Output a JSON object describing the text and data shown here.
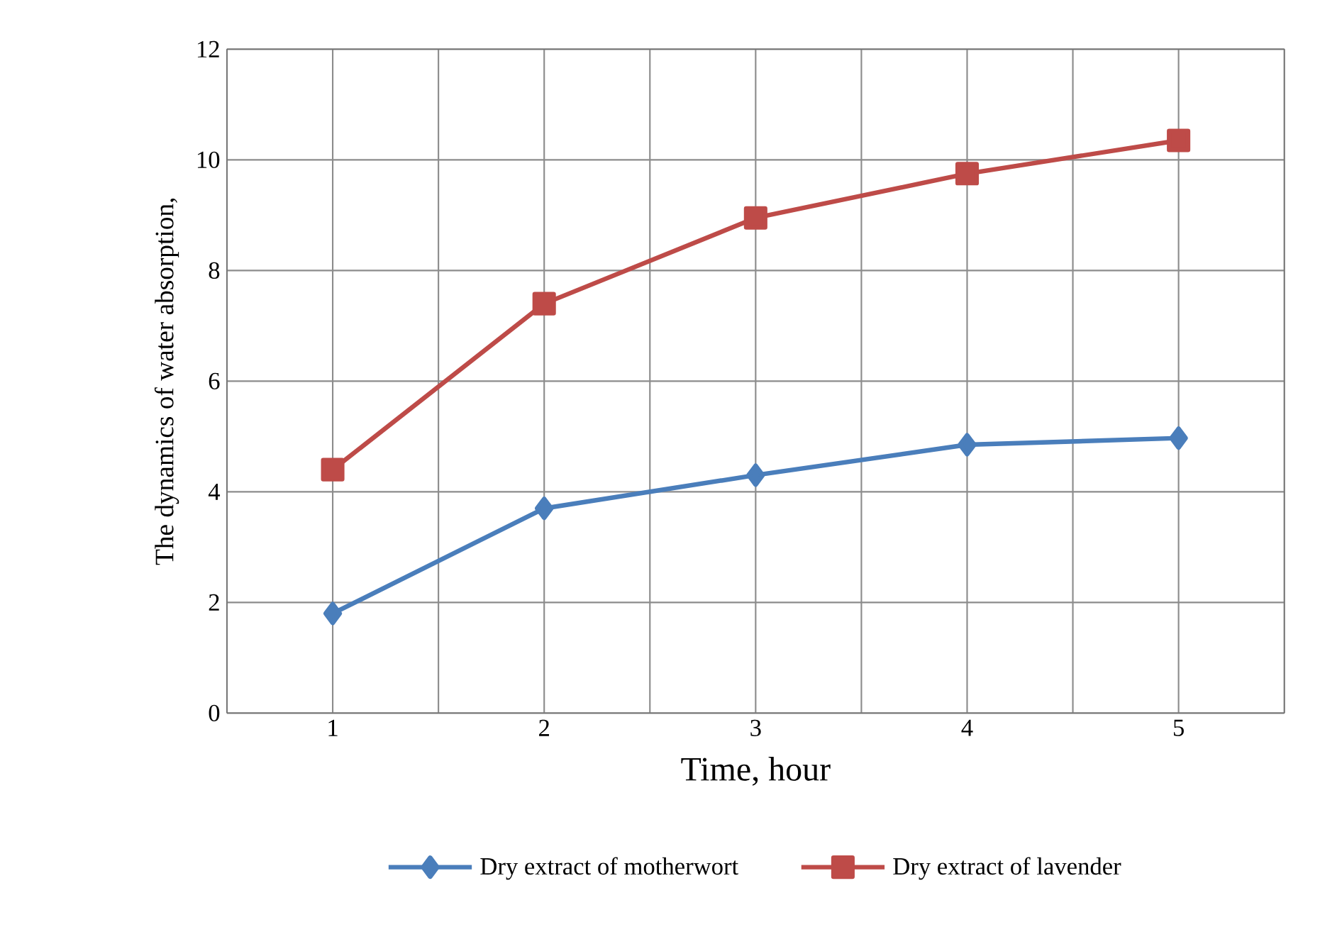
{
  "chart_data": {
    "type": "line",
    "xlabel": "Time, hour",
    "ylabel": "The dynamics of water absorption,",
    "categories": [
      "1",
      "2",
      "3",
      "4",
      "5"
    ],
    "series": [
      {
        "name": "Dry extract of motherwort",
        "color": "#4a7ebb",
        "marker": "diamond",
        "values": [
          1.8,
          3.7,
          4.3,
          4.85,
          4.97
        ]
      },
      {
        "name": "Dry extract of lavender",
        "color": "#be4b48",
        "marker": "square",
        "values": [
          4.4,
          7.4,
          8.95,
          9.75,
          10.35
        ]
      }
    ],
    "ylim": [
      0,
      12
    ],
    "yticks": [
      0,
      2,
      4,
      6,
      8,
      10,
      12
    ],
    "grid": true,
    "legend": "bottom"
  }
}
